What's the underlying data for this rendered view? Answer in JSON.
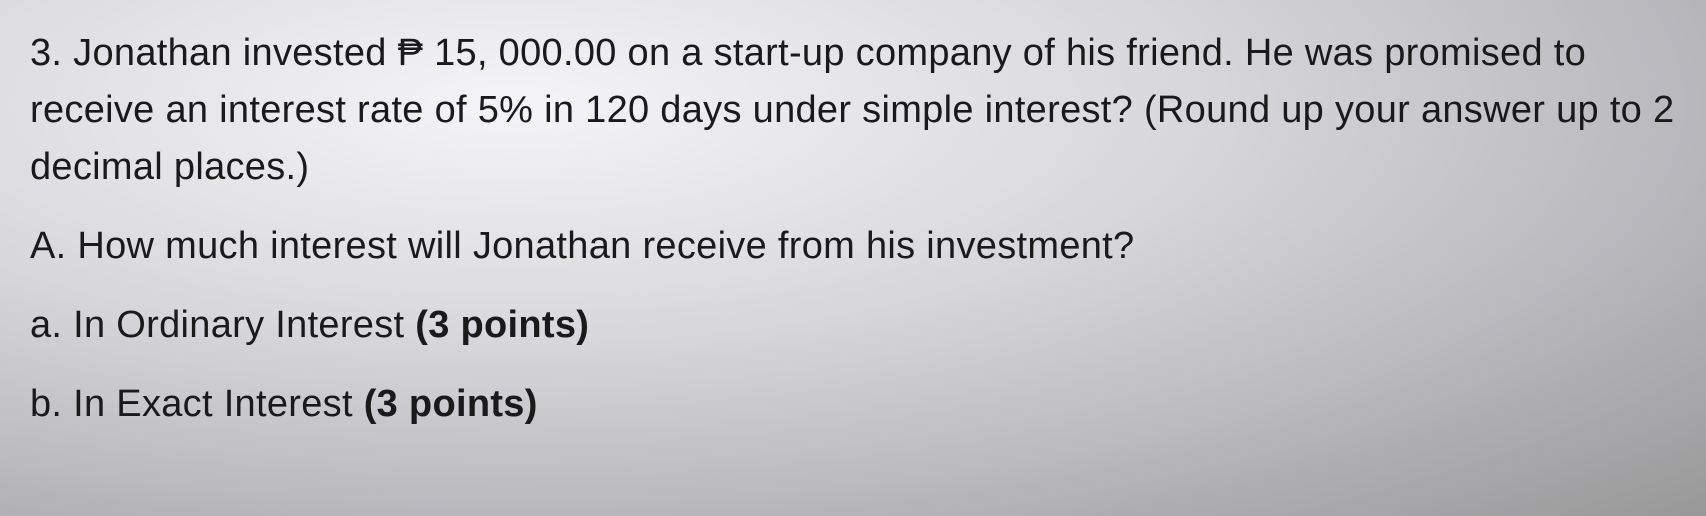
{
  "question": {
    "number": "3.",
    "main_text_part1": "Jonathan invested ",
    "currency_symbol": "₱",
    "amount": " 15, 000.00",
    "main_text_part2": " on a start-up company of his friend. He was promised to receive an interest rate of 5% in 120 days under simple interest? (Round up your answer up to 2 decimal places.)",
    "sub_question": {
      "label": "A.",
      "text": "How much interest will Jonathan receive from his investment?"
    },
    "options": {
      "a": {
        "label": "a.",
        "text": "In Ordinary Interest ",
        "points": "(3 points)"
      },
      "b": {
        "label": "b.",
        "text": "In Exact Interest ",
        "points": "(3 points)"
      }
    }
  },
  "styling": {
    "background_gradient_start": "#f5f5f7",
    "background_gradient_mid": "#d8d8dc",
    "background_gradient_end": "#989898",
    "text_color": "#1a1a1a",
    "font_size_main": 38,
    "font_family": "Arial, Helvetica, sans-serif",
    "line_height": 1.5
  }
}
